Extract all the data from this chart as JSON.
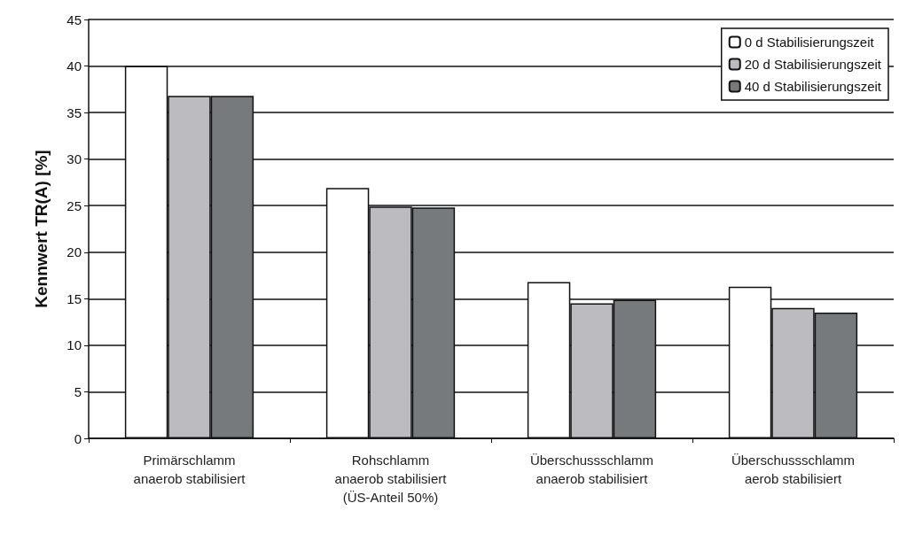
{
  "chart_data": {
    "type": "bar",
    "ylabel": "Kennwert TR(A) [%]",
    "categories": [
      "Primärschlamm\nanaerob stabilisiert",
      "Rohschlamm\nanaerob stabilisiert\n(ÜS-Anteil 50%)",
      "Überschussschlamm\nanaerob stabilisiert",
      "Überschussschlamm\naerob stabilisiert"
    ],
    "series": [
      {
        "name": "0 d Stabilisierungszeit",
        "color": "#ffffff",
        "values": [
          40,
          26.9,
          16.8,
          16.3
        ]
      },
      {
        "name": "20 d Stabilisierungszeit",
        "color": "#bcbcc0",
        "values": [
          36.8,
          24.9,
          14.5,
          14.0
        ]
      },
      {
        "name": "40 d Stabilisierungszeit",
        "color": "#767a7c",
        "values": [
          36.8,
          24.8,
          14.9,
          13.5
        ]
      }
    ],
    "ylim": [
      0,
      45
    ],
    "yticks": [
      0,
      5,
      10,
      15,
      20,
      25,
      30,
      35,
      40,
      45
    ],
    "grid": "y",
    "legend": "top right"
  }
}
